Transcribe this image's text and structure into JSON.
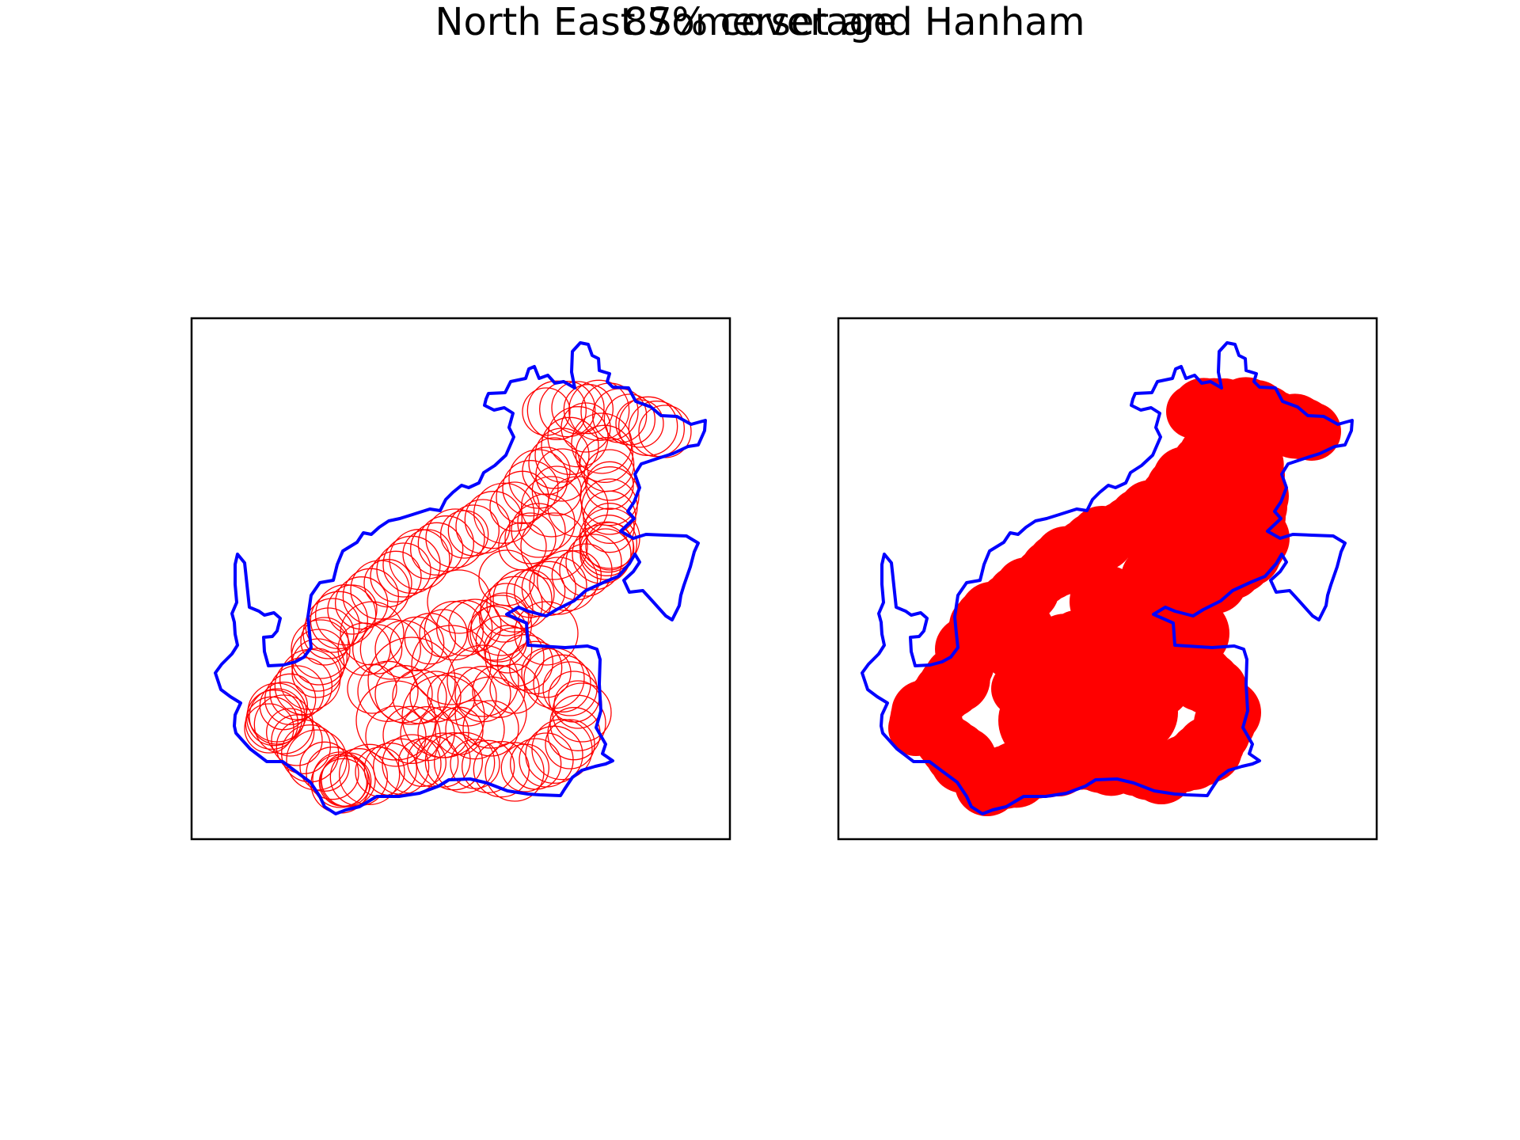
{
  "figure": {
    "title": "North East Somerset and Hanham",
    "subtitle": "87% coverage",
    "colors": {
      "boundary": "#0000ff",
      "coverage": "#ff0000",
      "frame": "#000000",
      "background": "#ffffff"
    }
  },
  "chart_data": [
    {
      "type": "map",
      "panel": "left",
      "style": "circle outlines",
      "series": [
        {
          "name": "",
          "mark": "boundary outline",
          "color": "#0000ff"
        },
        {
          "name": "",
          "mark": "coverage circles (outline)",
          "color": "#ff0000"
        }
      ],
      "axes_visible": false
    },
    {
      "type": "map",
      "panel": "right",
      "style": "filled circles",
      "series": [
        {
          "name": "",
          "mark": "boundary outline",
          "color": "#0000ff"
        },
        {
          "name": "",
          "mark": "coverage circles (filled)",
          "color": "#ff0000"
        }
      ],
      "axes_visible": false
    }
  ]
}
